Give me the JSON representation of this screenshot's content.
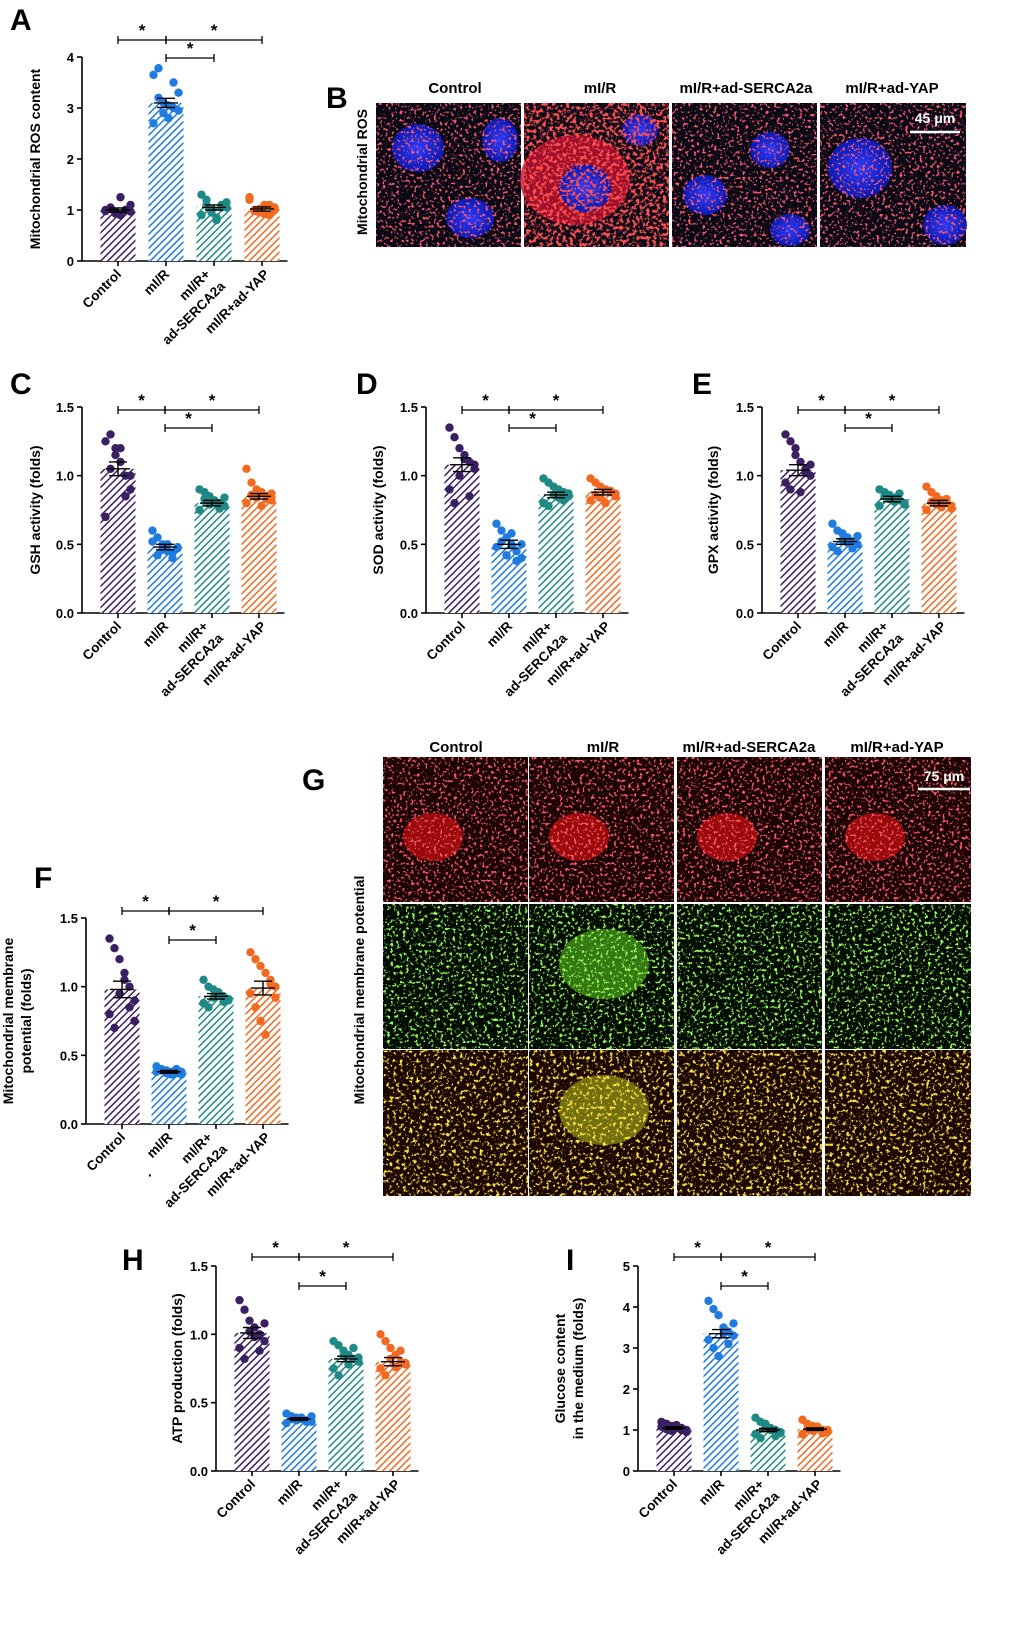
{
  "colors": {
    "Control": "#3b1f63",
    "mI/R": "#1f7be0",
    "mI/R+ad-SERCA2a": "#1f8a85",
    "mI/R+ad-YAP": "#f26a21"
  },
  "category_labels": [
    "Control",
    "mI/R",
    "mI/R+",
    "ad-SERCA2a",
    "mI/R+ad-YAP"
  ],
  "significance_mark": "*",
  "chart_data": [
    {
      "panel": "A",
      "type": "bar",
      "ylabel": "Mitochondrial ROS content",
      "ylim": [
        0,
        4
      ],
      "yticks": [
        "0",
        "1",
        "2",
        "3",
        "4"
      ],
      "categories": [
        "Control",
        "mI/R",
        "mI/R+ad-SERCA2a",
        "mI/R+ad-YAP"
      ],
      "values": [
        1.0,
        3.1,
        1.05,
        1.02
      ],
      "sem": [
        0.04,
        0.09,
        0.05,
        0.04
      ],
      "points": [
        [
          1.0,
          1.05,
          0.95,
          0.9,
          1.0,
          1.1,
          0.98,
          1.02,
          0.93,
          1.25,
          1.0,
          0.97
        ],
        [
          3.65,
          3.78,
          3.1,
          2.8,
          3.0,
          3.3,
          2.7,
          3.2,
          2.9,
          3.05,
          3.5,
          2.95
        ],
        [
          1.3,
          1.1,
          0.95,
          0.8,
          1.05,
          1.15,
          0.9,
          1.2,
          1.0,
          0.85,
          1.1,
          1.05
        ],
        [
          1.25,
          1.0,
          0.95,
          1.1,
          0.9,
          1.05,
          1.2,
          0.98,
          1.02,
          0.92,
          1.1,
          1.0
        ]
      ]
    },
    {
      "panel": "C",
      "type": "bar",
      "ylabel": "GSH activity (folds)",
      "ylim": [
        0,
        1.5
      ],
      "yticks": [
        "0.0",
        "0.5",
        "1.0",
        "1.5"
      ],
      "categories": [
        "Control",
        "mI/R",
        "mI/R+ad-SERCA2a",
        "mI/R+ad-YAP"
      ],
      "values": [
        1.05,
        0.48,
        0.8,
        0.85
      ],
      "sem": [
        0.05,
        0.02,
        0.02,
        0.02
      ],
      "points": [
        [
          1.25,
          1.3,
          1.2,
          1.1,
          1.0,
          0.9,
          0.7,
          1.05,
          1.15,
          1.2,
          0.85,
          1.0
        ],
        [
          0.6,
          0.55,
          0.5,
          0.45,
          0.4,
          0.48,
          0.52,
          0.42,
          0.46,
          0.5,
          0.44,
          0.47
        ],
        [
          0.9,
          0.88,
          0.85,
          0.82,
          0.8,
          0.78,
          0.75,
          0.83,
          0.79,
          0.81,
          0.76,
          0.84
        ],
        [
          1.05,
          0.95,
          0.9,
          0.88,
          0.85,
          0.82,
          0.8,
          0.86,
          0.84,
          0.78,
          0.83,
          0.87
        ]
      ]
    },
    {
      "panel": "D",
      "type": "bar",
      "ylabel": "SOD activity (folds)",
      "ylim": [
        0,
        1.5
      ],
      "yticks": [
        "0.0",
        "0.5",
        "1.0",
        "1.5"
      ],
      "categories": [
        "Control",
        "mI/R",
        "mI/R+ad-SERCA2a",
        "mI/R+ad-YAP"
      ],
      "values": [
        1.08,
        0.5,
        0.86,
        0.88
      ],
      "sem": [
        0.05,
        0.03,
        0.02,
        0.02
      ],
      "points": [
        [
          1.35,
          1.28,
          1.2,
          1.15,
          1.1,
          1.05,
          0.9,
          0.8,
          1.0,
          1.12,
          0.85,
          1.08
        ],
        [
          0.65,
          0.6,
          0.55,
          0.5,
          0.45,
          0.4,
          0.48,
          0.52,
          0.42,
          0.58,
          0.38,
          0.5
        ],
        [
          0.98,
          0.95,
          0.92,
          0.9,
          0.88,
          0.85,
          0.8,
          0.78,
          0.86,
          0.84,
          0.82,
          0.87
        ],
        [
          0.98,
          0.95,
          0.92,
          0.9,
          0.88,
          0.85,
          0.82,
          0.86,
          0.84,
          0.8,
          0.89,
          0.87
        ]
      ]
    },
    {
      "panel": "E",
      "type": "bar",
      "ylabel": "GPX activity (folds)",
      "ylim": [
        0,
        1.5
      ],
      "yticks": [
        "0.0",
        "0.5",
        "1.0",
        "1.5"
      ],
      "categories": [
        "Control",
        "mI/R",
        "mI/R+ad-SERCA2a",
        "mI/R+ad-YAP"
      ],
      "values": [
        1.04,
        0.52,
        0.83,
        0.8
      ],
      "sem": [
        0.04,
        0.02,
        0.02,
        0.02
      ],
      "points": [
        [
          1.3,
          1.25,
          1.2,
          1.1,
          1.05,
          1.0,
          0.95,
          0.9,
          1.15,
          0.88,
          1.02,
          1.08
        ],
        [
          0.65,
          0.6,
          0.58,
          0.55,
          0.52,
          0.5,
          0.48,
          0.45,
          0.53,
          0.51,
          0.47,
          0.56
        ],
        [
          0.9,
          0.88,
          0.86,
          0.84,
          0.82,
          0.8,
          0.78,
          0.85,
          0.83,
          0.81,
          0.87,
          0.79
        ],
        [
          0.92,
          0.88,
          0.85,
          0.82,
          0.8,
          0.78,
          0.75,
          0.81,
          0.79,
          0.77,
          0.83,
          0.76
        ]
      ]
    },
    {
      "panel": "F",
      "type": "bar",
      "ylabel": "Mitochondrial membrane potential (folds)",
      "ylim": [
        0,
        1.5
      ],
      "yticks": [
        "0.0",
        "0.5",
        "1.0",
        "1.5"
      ],
      "categories": [
        "Control",
        "mI/R",
        "mI/R+ad-SERCA2a",
        "mI/R+ad-YAP"
      ],
      "values": [
        0.98,
        0.38,
        0.93,
        0.99
      ],
      "sem": [
        0.06,
        0.01,
        0.02,
        0.05
      ],
      "points": [
        [
          1.35,
          1.28,
          1.2,
          1.1,
          1.0,
          0.9,
          0.8,
          0.7,
          0.95,
          1.05,
          0.85,
          0.75
        ],
        [
          0.42,
          0.4,
          0.39,
          0.38,
          0.37,
          0.36,
          0.38,
          0.39,
          0.37,
          0.36,
          0.4,
          0.38
        ],
        [
          1.05,
          1.0,
          0.98,
          0.95,
          0.93,
          0.9,
          0.88,
          0.85,
          0.92,
          0.96,
          0.89,
          0.91
        ],
        [
          1.25,
          1.2,
          1.15,
          1.1,
          1.05,
          1.0,
          0.95,
          0.85,
          0.75,
          0.65,
          1.02,
          0.92
        ]
      ]
    },
    {
      "panel": "H",
      "type": "bar",
      "ylabel": "ATP production (folds)",
      "ylim": [
        0,
        1.5
      ],
      "yticks": [
        "0.0",
        "0.5",
        "1.0",
        "1.5"
      ],
      "categories": [
        "Control",
        "mI/R",
        "mI/R+ad-SERCA2a",
        "mI/R+ad-YAP"
      ],
      "values": [
        1.01,
        0.38,
        0.82,
        0.8
      ],
      "sem": [
        0.04,
        0.01,
        0.02,
        0.03
      ],
      "points": [
        [
          1.25,
          1.18,
          1.1,
          1.05,
          1.0,
          0.95,
          0.9,
          0.82,
          1.02,
          0.98,
          0.88,
          1.08
        ],
        [
          0.42,
          0.4,
          0.39,
          0.38,
          0.37,
          0.36,
          0.35,
          0.38,
          0.37,
          0.39,
          0.36,
          0.4
        ],
        [
          0.95,
          0.92,
          0.88,
          0.85,
          0.82,
          0.8,
          0.75,
          0.7,
          0.84,
          0.78,
          0.9,
          0.83
        ],
        [
          1.0,
          0.95,
          0.9,
          0.85,
          0.8,
          0.78,
          0.75,
          0.7,
          0.82,
          0.76,
          0.88,
          0.79
        ]
      ]
    },
    {
      "panel": "I",
      "type": "bar",
      "ylabel": "Glucose content in the medium (folds)",
      "ylim": [
        0,
        5
      ],
      "yticks": [
        "0",
        "1",
        "2",
        "3",
        "4",
        "5"
      ],
      "categories": [
        "Control",
        "mI/R",
        "mI/R+ad-SERCA2a",
        "mI/R+ad-YAP"
      ],
      "values": [
        1.05,
        3.35,
        1.0,
        1.02
      ],
      "sem": [
        0.03,
        0.1,
        0.04,
        0.03
      ],
      "points": [
        [
          1.2,
          1.15,
          1.1,
          1.05,
          1.0,
          0.95,
          1.08,
          1.02,
          0.98,
          1.12,
          1.05,
          1.0
        ],
        [
          4.15,
          3.95,
          3.8,
          3.5,
          3.4,
          3.3,
          3.2,
          3.0,
          2.8,
          3.35,
          3.1,
          3.6
        ],
        [
          1.3,
          1.2,
          1.15,
          1.05,
          1.0,
          0.95,
          0.9,
          0.8,
          1.1,
          1.0,
          0.85,
          0.92
        ],
        [
          1.25,
          1.15,
          1.1,
          1.05,
          1.0,
          0.95,
          0.9,
          1.02,
          0.98,
          1.08,
          0.92,
          1.0
        ]
      ]
    }
  ],
  "microscopy": {
    "B": {
      "headers": [
        "Control",
        "mI/R",
        "mI/R+ad-SERCA2a",
        "mI/R+ad-YAP"
      ],
      "row_label": "Mitochondrial ROS",
      "scale": "45 μm"
    },
    "G": {
      "headers": [
        "Control",
        "mI/R",
        "mI/R+ad-SERCA2a",
        "mI/R+ad-YAP"
      ],
      "row_label": "Mitochondrial membrane potential",
      "scale": "75 μm"
    }
  },
  "stray_mark": "·"
}
